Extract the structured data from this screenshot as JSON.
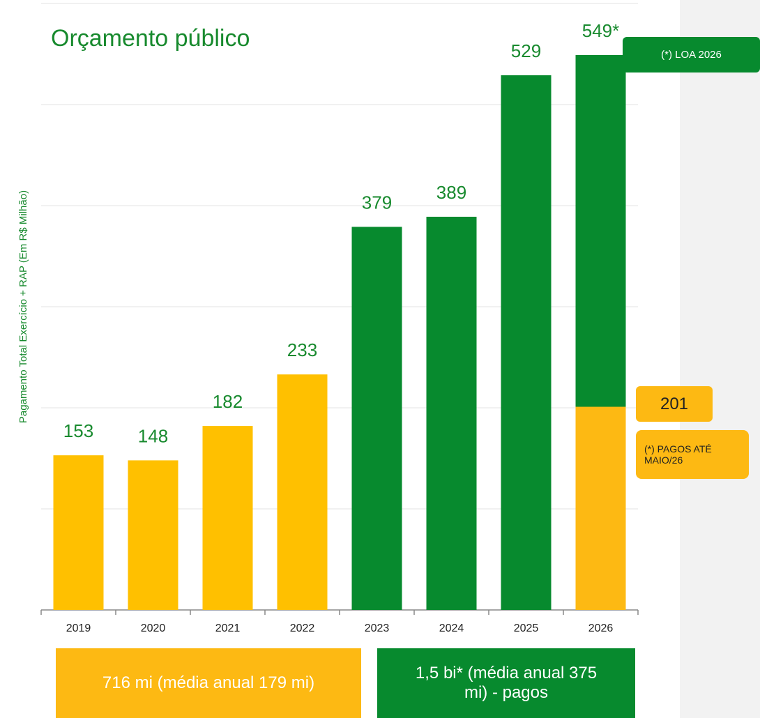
{
  "chart_data": {
    "type": "bar",
    "title": "Orçamento público",
    "y_label": "Pagamento Total Exercício + RAP (Em R$ Milhão)",
    "categories": [
      "2019",
      "2020",
      "2021",
      "2022",
      "2023",
      "2024",
      "2025",
      "2026"
    ],
    "series": [
      {
        "color": "#078a2e",
        "values": [
          null,
          null,
          null,
          null,
          379,
          389,
          529,
          549
        ],
        "value_labels": [
          null,
          null,
          null,
          null,
          "379",
          "389",
          "529",
          "549*"
        ]
      },
      {
        "color": "#ffc000",
        "values": [
          153,
          148,
          182,
          233,
          null,
          null,
          null,
          201
        ]
      }
    ],
    "ylim": [
      0,
      600
    ],
    "yticks": [
      0,
      100,
      200,
      300,
      400,
      500,
      600
    ],
    "grid": true,
    "annotations": [
      "(*) LOA 2026",
      "(*) PAGOS ATÉ MAIO/26",
      "716 mi (média anual 179 mi)",
      "1,5 bi* (média anual 375 mi) - pagos"
    ]
  }
}
